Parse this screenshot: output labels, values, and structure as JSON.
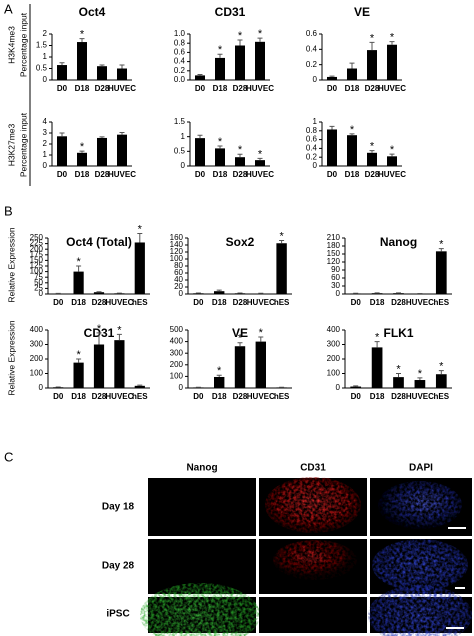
{
  "panel_labels": [
    "A",
    "B",
    "C"
  ],
  "side_labels": [
    "H3K4me3",
    "Percentage input",
    "H3K27me3",
    "Percentage input",
    "Relative Expression",
    "Relative Expression"
  ],
  "chart_data": [
    {
      "type": "bar",
      "title": "Oct4",
      "categories": [
        "D0",
        "D18",
        "D28",
        "HUVEC"
      ],
      "values": [
        0.65,
        1.65,
        0.6,
        0.5
      ],
      "errors": [
        0.1,
        0.15,
        0.05,
        0.15
      ],
      "annotations": [
        null,
        "*",
        null,
        null
      ],
      "color": "#000000",
      "ylim": [
        0,
        2
      ],
      "yticks": [
        0,
        0.5,
        1,
        1.5,
        2
      ]
    },
    {
      "type": "bar",
      "title": "CD31",
      "categories": [
        "D0",
        "D18",
        "D28",
        "HUVEC"
      ],
      "values": [
        0.1,
        0.48,
        0.75,
        0.83
      ],
      "errors": [
        0.02,
        0.08,
        0.12,
        0.08
      ],
      "annotations": [
        null,
        "*",
        "*",
        "*"
      ],
      "color": "#000000",
      "ylim": [
        0,
        1
      ],
      "yticks": [
        {
          "value": 0,
          "label": "0.0"
        },
        0.2,
        0.4,
        0.6,
        0.8,
        {
          "value": 1,
          "label": "1.0"
        }
      ]
    },
    {
      "type": "bar",
      "title": "VE",
      "categories": [
        "D0",
        "D18",
        "D28",
        "HUVEC"
      ],
      "values": [
        0.04,
        0.15,
        0.39,
        0.46
      ],
      "errors": [
        0.01,
        0.07,
        0.1,
        0.04
      ],
      "annotations": [
        null,
        null,
        "*",
        "*"
      ],
      "color": "#000000",
      "ylim": [
        0,
        0.6
      ],
      "yticks": [
        0,
        0.2,
        0.4,
        0.6
      ]
    },
    {
      "type": "bar",
      "categories": [
        "D0",
        "D18",
        "D28",
        "HUVEC"
      ],
      "values": [
        2.7,
        1.2,
        2.55,
        2.85
      ],
      "errors": [
        0.3,
        0.15,
        0.1,
        0.2
      ],
      "annotations": [
        null,
        "*",
        null,
        null
      ],
      "color": "#000000",
      "ylim": [
        0,
        4
      ],
      "yticks": [
        0,
        1,
        2,
        3,
        4
      ]
    },
    {
      "type": "bar",
      "categories": [
        "D0",
        "D18",
        "D28",
        "HUVEC"
      ],
      "values": [
        0.95,
        0.6,
        0.3,
        0.2
      ],
      "errors": [
        0.1,
        0.08,
        0.1,
        0.06
      ],
      "annotations": [
        null,
        "*",
        "*",
        "*"
      ],
      "color": "#000000",
      "ylim": [
        0,
        1.5
      ],
      "yticks": [
        0,
        0.5,
        1,
        1.5
      ]
    },
    {
      "type": "bar",
      "categories": [
        "D0",
        "D18",
        "D28",
        "HUVEC"
      ],
      "values": [
        0.83,
        0.7,
        0.3,
        0.22
      ],
      "errors": [
        0.07,
        0.03,
        0.05,
        0.05
      ],
      "annotations": [
        null,
        "*",
        "*",
        "*"
      ],
      "color": "#000000",
      "ylim": [
        0,
        1
      ],
      "yticks": [
        0,
        0.2,
        0.4,
        0.6,
        0.8,
        1
      ]
    },
    {
      "type": "bar",
      "title": "Oct4 (Total)",
      "categories": [
        "D0",
        "D18",
        "D28",
        "HUVEC",
        "hES"
      ],
      "values": [
        2,
        100,
        8,
        3,
        230
      ],
      "errors": [
        1,
        25,
        2,
        1,
        40
      ],
      "annotations": [
        null,
        "*",
        null,
        null,
        "*"
      ],
      "color": "#000000",
      "ylim": [
        0,
        250
      ],
      "yticks": [
        0,
        25,
        50,
        75,
        100,
        125,
        150,
        175,
        200,
        225,
        250
      ]
    },
    {
      "type": "bar",
      "title": "Sox2",
      "categories": [
        "D0",
        "D18",
        "D28",
        "HUVEC",
        "hES"
      ],
      "values": [
        2,
        8,
        2,
        1,
        145
      ],
      "errors": [
        1,
        3,
        1,
        1,
        8
      ],
      "annotations": [
        null,
        null,
        null,
        null,
        "*"
      ],
      "color": "#000000",
      "ylim": [
        0,
        160
      ],
      "yticks": [
        0,
        20,
        40,
        60,
        80,
        100,
        120,
        140,
        160
      ]
    },
    {
      "type": "bar",
      "title": "Nanog",
      "categories": [
        "D0",
        "D18",
        "D28",
        "HUVEC",
        "hES"
      ],
      "values": [
        2,
        3,
        3,
        1,
        160
      ],
      "errors": [
        1,
        1,
        1,
        1,
        10
      ],
      "annotations": [
        null,
        null,
        null,
        null,
        "*"
      ],
      "color": "#000000",
      "ylim": [
        0,
        210
      ],
      "yticks": [
        0,
        30,
        60,
        90,
        120,
        150,
        180,
        210
      ]
    },
    {
      "type": "bar",
      "title": "CD31",
      "categories": [
        "D0",
        "D18",
        "D28",
        "HUVEC",
        "hES"
      ],
      "values": [
        5,
        175,
        300,
        330,
        15
      ],
      "errors": [
        2,
        25,
        80,
        40,
        5
      ],
      "annotations": [
        null,
        "*",
        "*",
        "*",
        null
      ],
      "color": "#000000",
      "ylim": [
        0,
        400
      ],
      "yticks": [
        0,
        100,
        200,
        300,
        400
      ]
    },
    {
      "type": "bar",
      "title": "VE",
      "categories": [
        "D0",
        "D18",
        "D28",
        "HUVEC",
        "hES"
      ],
      "values": [
        5,
        95,
        360,
        400,
        5
      ],
      "errors": [
        2,
        15,
        30,
        40,
        2
      ],
      "annotations": [
        null,
        "*",
        "*",
        "*",
        null
      ],
      "color": "#000000",
      "ylim": [
        0,
        500
      ],
      "yticks": [
        0,
        100,
        200,
        300,
        400,
        500
      ]
    },
    {
      "type": "bar",
      "title": "FLK1",
      "categories": [
        "D0",
        "D18",
        "D28",
        "HUVEC",
        "hES"
      ],
      "values": [
        10,
        280,
        75,
        55,
        95
      ],
      "errors": [
        5,
        40,
        25,
        15,
        25
      ],
      "annotations": [
        null,
        "*",
        "*",
        "*",
        "*"
      ],
      "color": "#000000",
      "ylim": [
        0,
        400
      ],
      "yticks": [
        0,
        100,
        200,
        300,
        400
      ]
    }
  ],
  "images": {
    "columns": [
      "Nanog",
      "CD31",
      "DAPI"
    ],
    "rows": [
      "Day 18",
      "Day 28",
      "iPSC"
    ]
  }
}
